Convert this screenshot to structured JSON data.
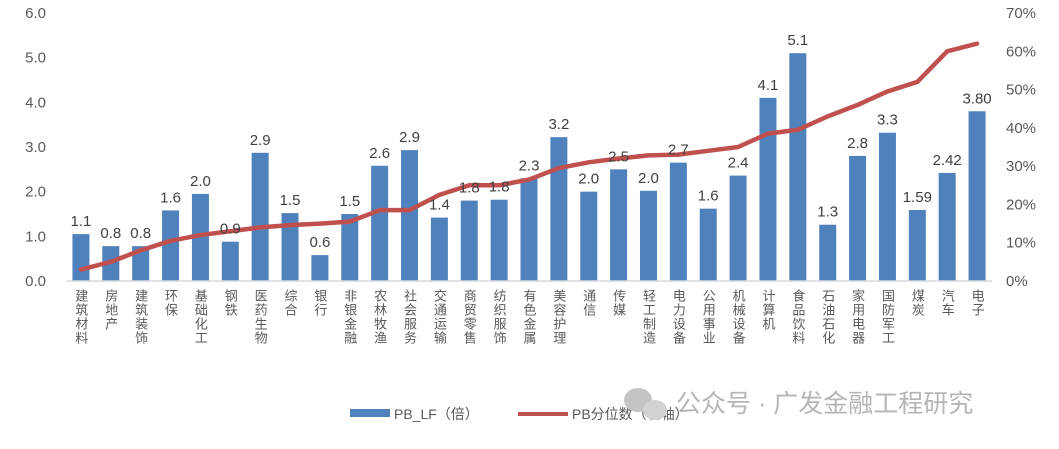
{
  "chart_data": {
    "type": "bar",
    "title": "",
    "categories": [
      "建筑材料",
      "房地产",
      "建筑装饰",
      "环保",
      "基础化工",
      "钢铁",
      "医药生物",
      "综合",
      "银行",
      "非银金融",
      "农林牧渔",
      "社会服务",
      "交通运输",
      "商贸零售",
      "纺织服饰",
      "有色金属",
      "美容护理",
      "通信",
      "传媒",
      "轻工制造",
      "电力设备",
      "公用事业",
      "机械设备",
      "计算机",
      "食品饮料",
      "石油石化",
      "家用电器",
      "国防军工",
      "煤炭",
      "汽车",
      "电子"
    ],
    "series": [
      {
        "name": "PB_LF（倍）",
        "type": "bar",
        "axis": "left",
        "color": "#4F81BD",
        "values": [
          1.05,
          0.78,
          0.78,
          1.58,
          1.95,
          0.88,
          2.87,
          1.52,
          0.58,
          1.5,
          2.58,
          2.93,
          1.42,
          1.8,
          1.82,
          2.3,
          3.22,
          2.0,
          2.5,
          2.02,
          2.65,
          1.62,
          2.36,
          4.1,
          5.1,
          1.26,
          2.8,
          3.32,
          1.59,
          2.42,
          3.8
        ],
        "labels": [
          "1.1",
          "0.8",
          "0.8",
          "1.6",
          "2.0",
          "0.9",
          "2.9",
          "1.5",
          "0.6",
          "1.5",
          "2.6",
          "2.9",
          "1.4",
          "1.8",
          "1.8",
          "2.3",
          "3.2",
          "2.0",
          "2.5",
          "2.0",
          "2.7",
          "1.6",
          "2.4",
          "4.1",
          "5.1",
          "1.3",
          "2.8",
          "3.3",
          "1.59",
          "2.42",
          "3.80"
        ]
      },
      {
        "name": "PB分位数（右轴）",
        "type": "line",
        "axis": "right",
        "color": "#C0504D",
        "values": [
          3,
          5,
          8,
          10.5,
          12,
          13,
          14,
          14.6,
          15,
          15.5,
          18.5,
          18.5,
          22.5,
          25,
          25,
          26.5,
          29.5,
          31,
          32,
          32.8,
          33,
          34,
          35,
          38.5,
          39.5,
          43,
          46,
          49.5,
          52,
          60,
          62
        ]
      }
    ],
    "y_left": {
      "range": [
        0,
        6
      ],
      "ticks": [
        "0.0",
        "1.0",
        "2.0",
        "3.0",
        "4.0",
        "5.0",
        "6.0"
      ]
    },
    "y_right": {
      "range": [
        0,
        70
      ],
      "ticks": [
        "0%",
        "10%",
        "20%",
        "30%",
        "40%",
        "50%",
        "60%",
        "70%"
      ]
    },
    "legend_position": "bottom",
    "grid": false
  },
  "watermark": "公众号 · 广发金融工程研究"
}
